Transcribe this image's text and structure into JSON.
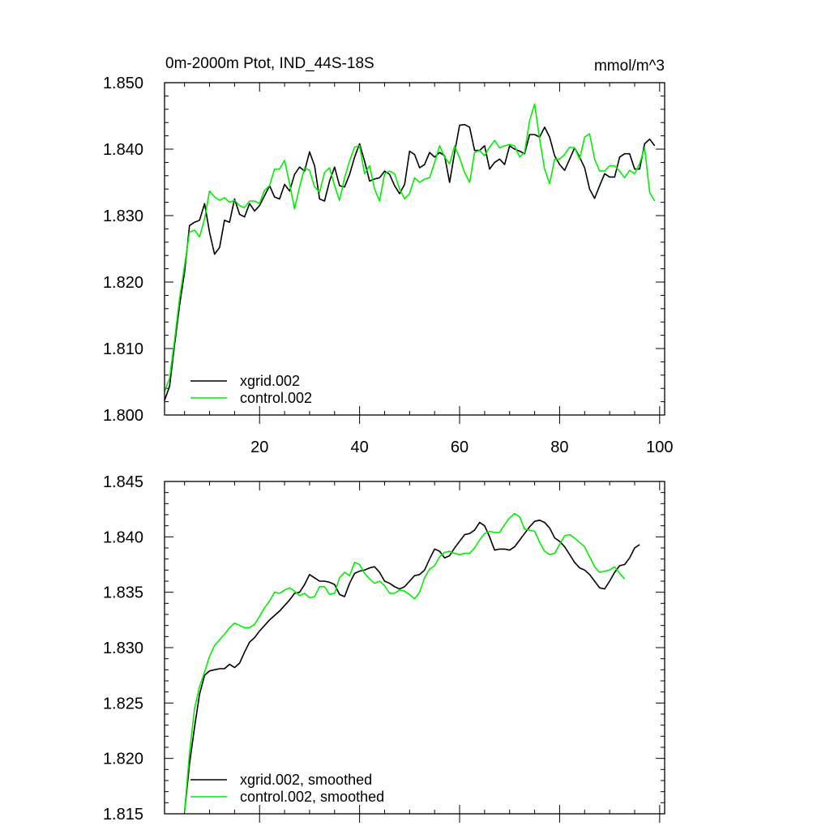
{
  "chart_data": [
    {
      "type": "line",
      "title": "0m-2000m Ptot, IND_44S-18S",
      "units": "mmol/m^3",
      "xlim": [
        1,
        101
      ],
      "ylim": [
        1.8,
        1.85
      ],
      "x_ticks": [
        20,
        40,
        60,
        80,
        100
      ],
      "y_ticks": [
        1.8,
        1.81,
        1.82,
        1.83,
        1.84,
        1.85
      ],
      "y_tick_labels": [
        "1.800",
        "1.810",
        "1.820",
        "1.830",
        "1.840",
        "1.850"
      ],
      "legend_position": "lower-left",
      "series": [
        {
          "name": "xgrid.002",
          "color": "#000000",
          "x_start": 1,
          "values": [
            1.8022,
            1.8043,
            1.8105,
            1.8165,
            1.8215,
            1.8285,
            1.829,
            1.8293,
            1.8318,
            1.8275,
            1.8242,
            1.8252,
            1.8293,
            1.829,
            1.8325,
            1.8302,
            1.8298,
            1.8318,
            1.8307,
            1.8315,
            1.833,
            1.8345,
            1.8328,
            1.8325,
            1.8347,
            1.8337,
            1.8362,
            1.8373,
            1.8367,
            1.8396,
            1.8375,
            1.8325,
            1.8322,
            1.8352,
            1.8373,
            1.8345,
            1.8343,
            1.8362,
            1.8388,
            1.8408,
            1.8382,
            1.8352,
            1.8355,
            1.8357,
            1.8367,
            1.8362,
            1.8345,
            1.8333,
            1.8347,
            1.8397,
            1.8392,
            1.8372,
            1.8377,
            1.8395,
            1.8388,
            1.8395,
            1.839,
            1.835,
            1.8395,
            1.8436,
            1.8437,
            1.8433,
            1.8398,
            1.8398,
            1.8405,
            1.837,
            1.838,
            1.8385,
            1.8377,
            1.8405,
            1.84,
            1.8397,
            1.8393,
            1.8422,
            1.8422,
            1.8418,
            1.8433,
            1.8418,
            1.839,
            1.8377,
            1.8368,
            1.8385,
            1.8402,
            1.8388,
            1.8372,
            1.834,
            1.8326,
            1.8345,
            1.8363,
            1.8358,
            1.8358,
            1.8388,
            1.8393,
            1.8393,
            1.837,
            1.837,
            1.8408,
            1.8415,
            1.8405
          ]
        },
        {
          "name": "control.002",
          "color": "#00ee00",
          "x_start": 1,
          "values": [
            1.8035,
            1.8055,
            1.8112,
            1.8175,
            1.8225,
            1.8275,
            1.8278,
            1.8268,
            1.8295,
            1.8337,
            1.8328,
            1.8323,
            1.8327,
            1.832,
            1.8323,
            1.8315,
            1.8312,
            1.8322,
            1.8322,
            1.8318,
            1.8338,
            1.8345,
            1.837,
            1.837,
            1.8383,
            1.8348,
            1.831,
            1.8343,
            1.8372,
            1.8368,
            1.8343,
            1.8335,
            1.8365,
            1.8372,
            1.8345,
            1.8323,
            1.8357,
            1.8382,
            1.8403,
            1.8405,
            1.8363,
            1.8375,
            1.834,
            1.8322,
            1.8363,
            1.8367,
            1.8363,
            1.834,
            1.8325,
            1.8333,
            1.8357,
            1.835,
            1.8355,
            1.8357,
            1.838,
            1.8405,
            1.8388,
            1.8378,
            1.8405,
            1.8387,
            1.8365,
            1.835,
            1.8395,
            1.8398,
            1.839,
            1.8403,
            1.8413,
            1.8402,
            1.8405,
            1.8407,
            1.8405,
            1.8388,
            1.8395,
            1.8443,
            1.8468,
            1.8415,
            1.837,
            1.8348,
            1.8385,
            1.8385,
            1.8392,
            1.8403,
            1.8402,
            1.8385,
            1.8418,
            1.8423,
            1.8385,
            1.8367,
            1.8367,
            1.8375,
            1.8375,
            1.8367,
            1.8357,
            1.8368,
            1.8363,
            1.8378,
            1.8402,
            1.8335,
            1.8322
          ]
        }
      ]
    },
    {
      "type": "line",
      "title": "",
      "xlim": [
        1,
        101
      ],
      "ylim": [
        1.815,
        1.845
      ],
      "x_ticks": [
        20,
        40,
        60,
        80,
        100
      ],
      "y_ticks": [
        1.815,
        1.82,
        1.825,
        1.83,
        1.835,
        1.84,
        1.845
      ],
      "y_tick_labels": [
        "1.815",
        "1.820",
        "1.825",
        "1.830",
        "1.835",
        "1.840",
        "1.845"
      ],
      "legend_position": "lower-left",
      "series": [
        {
          "name": "xgrid.002, smoothed",
          "color": "#000000",
          "x_start": 5,
          "values": [
            1.8152,
            1.8195,
            1.8228,
            1.8258,
            1.8275,
            1.8279,
            1.828,
            1.8281,
            1.8281,
            1.8285,
            1.8282,
            1.8286,
            1.8296,
            1.8305,
            1.8309,
            1.8315,
            1.832,
            1.8325,
            1.8329,
            1.8333,
            1.8338,
            1.8343,
            1.8349,
            1.835,
            1.8357,
            1.8366,
            1.8363,
            1.836,
            1.836,
            1.8359,
            1.8357,
            1.8348,
            1.8346,
            1.8358,
            1.8367,
            1.8369,
            1.837,
            1.8372,
            1.8373,
            1.8368,
            1.836,
            1.8358,
            1.8355,
            1.8353,
            1.8355,
            1.836,
            1.8365,
            1.8366,
            1.837,
            1.838,
            1.8389,
            1.8387,
            1.8381,
            1.8383,
            1.839,
            1.8396,
            1.8402,
            1.8403,
            1.8406,
            1.8413,
            1.841,
            1.84,
            1.8388,
            1.8389,
            1.8389,
            1.8388,
            1.8391,
            1.8397,
            1.8403,
            1.8409,
            1.8414,
            1.8415,
            1.8413,
            1.8408,
            1.8399,
            1.8396,
            1.8391,
            1.8384,
            1.8377,
            1.8372,
            1.837,
            1.8366,
            1.836,
            1.8354,
            1.8353,
            1.836,
            1.8368,
            1.8374,
            1.8375,
            1.8381,
            1.839,
            1.8393
          ]
        },
        {
          "name": "control.002, smoothed",
          "color": "#00ee00",
          "x_start": 5,
          "values": [
            1.8152,
            1.8205,
            1.8245,
            1.8265,
            1.8278,
            1.8292,
            1.8302,
            1.8307,
            1.8312,
            1.8318,
            1.8322,
            1.832,
            1.8318,
            1.8318,
            1.8321,
            1.8328,
            1.8336,
            1.8342,
            1.835,
            1.8349,
            1.8352,
            1.8354,
            1.8351,
            1.8347,
            1.8349,
            1.8345,
            1.8346,
            1.8355,
            1.8355,
            1.8348,
            1.8349,
            1.8363,
            1.8368,
            1.8365,
            1.8377,
            1.8375,
            1.8367,
            1.8362,
            1.8358,
            1.836,
            1.8356,
            1.8349,
            1.8349,
            1.8352,
            1.8351,
            1.8348,
            1.8344,
            1.835,
            1.8363,
            1.8371,
            1.8374,
            1.8382,
            1.8386,
            1.8387,
            1.8385,
            1.8384,
            1.8385,
            1.8385,
            1.839,
            1.8397,
            1.8403,
            1.8405,
            1.8404,
            1.8404,
            1.8411,
            1.8417,
            1.8421,
            1.8418,
            1.8407,
            1.8406,
            1.8405,
            1.8395,
            1.8387,
            1.8384,
            1.8385,
            1.8393,
            1.8401,
            1.8402,
            1.8399,
            1.8395,
            1.8391,
            1.8382,
            1.8373,
            1.8368,
            1.8369,
            1.837,
            1.8373,
            1.8367,
            1.8362
          ]
        }
      ]
    }
  ]
}
